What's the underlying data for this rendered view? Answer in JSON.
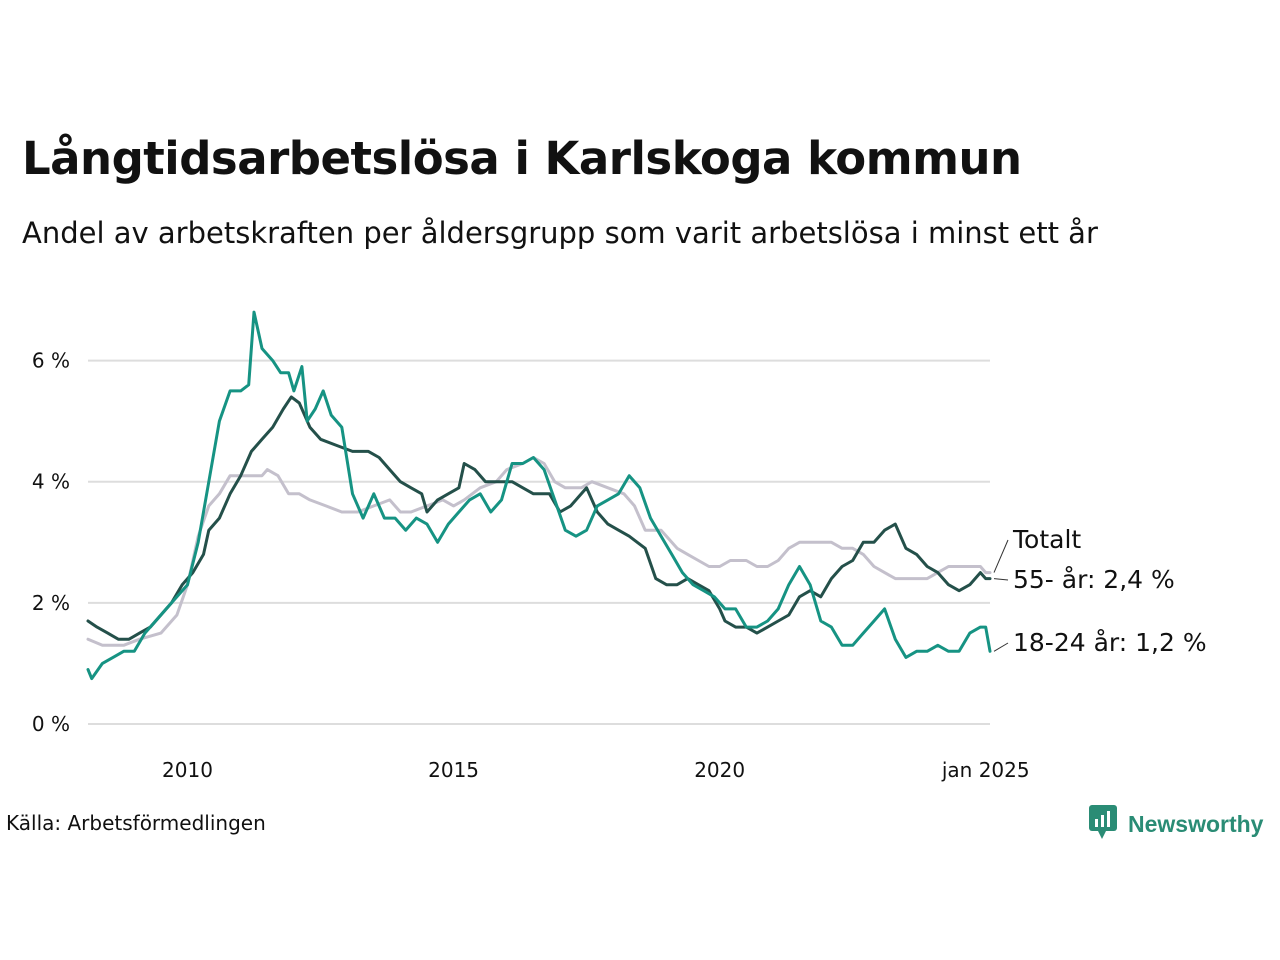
{
  "title": "Långtidsarbetslösa i Karlskoga kommun",
  "subtitle": "Andel av arbetskraften per åldersgrupp som varit arbetslösa i minst ett år",
  "source": "Källa: Arbetsförmedlingen",
  "brand": {
    "name": "Newsworthy",
    "icon": "newsworthy-logo-icon"
  },
  "colors": {
    "totalt": "#c4c0cc",
    "age55": "#24504a",
    "age18_24": "#169383",
    "grid": "#dddddd"
  },
  "chart_data": {
    "type": "line",
    "title": "Långtidsarbetslösa i Karlskoga kommun",
    "subtitle": "Andel av arbetskraften per åldersgrupp som varit arbetslösa i minst ett år",
    "xlabel": "",
    "ylabel": "",
    "ylim": [
      0,
      7
    ],
    "xlim": [
      2008.13,
      2025.08
    ],
    "yticks": [
      0,
      2,
      4,
      6
    ],
    "ytick_labels": [
      "0 %",
      "2 %",
      "4 %",
      "6 %"
    ],
    "xticks": [
      2010,
      2015,
      2020,
      2025.0
    ],
    "xtick_labels": [
      "2010",
      "2015",
      "2020",
      "jan 2025"
    ],
    "grid": "horizontal",
    "legend": "direct labels at right end of lines",
    "series": [
      {
        "name": "Totalt",
        "label": "Totalt",
        "key": "totalt",
        "points": [
          [
            2008.13,
            1.4
          ],
          [
            2008.4,
            1.3
          ],
          [
            2008.8,
            1.3
          ],
          [
            2009.1,
            1.4
          ],
          [
            2009.5,
            1.5
          ],
          [
            2009.8,
            1.8
          ],
          [
            2010.0,
            2.3
          ],
          [
            2010.2,
            3.1
          ],
          [
            2010.4,
            3.6
          ],
          [
            2010.6,
            3.8
          ],
          [
            2010.8,
            4.1
          ],
          [
            2011.0,
            4.1
          ],
          [
            2011.2,
            4.1
          ],
          [
            2011.4,
            4.1
          ],
          [
            2011.5,
            4.2
          ],
          [
            2011.7,
            4.1
          ],
          [
            2011.9,
            3.8
          ],
          [
            2012.1,
            3.8
          ],
          [
            2012.3,
            3.7
          ],
          [
            2012.6,
            3.6
          ],
          [
            2012.9,
            3.5
          ],
          [
            2013.2,
            3.5
          ],
          [
            2013.5,
            3.6
          ],
          [
            2013.8,
            3.7
          ],
          [
            2014.0,
            3.5
          ],
          [
            2014.2,
            3.5
          ],
          [
            2014.5,
            3.6
          ],
          [
            2014.8,
            3.7
          ],
          [
            2015.0,
            3.6
          ],
          [
            2015.2,
            3.7
          ],
          [
            2015.5,
            3.9
          ],
          [
            2015.8,
            4.0
          ],
          [
            2016.0,
            4.2
          ],
          [
            2016.3,
            4.3
          ],
          [
            2016.5,
            4.4
          ],
          [
            2016.7,
            4.3
          ],
          [
            2016.9,
            4.0
          ],
          [
            2017.1,
            3.9
          ],
          [
            2017.4,
            3.9
          ],
          [
            2017.6,
            4.0
          ],
          [
            2017.9,
            3.9
          ],
          [
            2018.2,
            3.8
          ],
          [
            2018.4,
            3.6
          ],
          [
            2018.6,
            3.2
          ],
          [
            2018.9,
            3.2
          ],
          [
            2019.2,
            2.9
          ],
          [
            2019.4,
            2.8
          ],
          [
            2019.6,
            2.7
          ],
          [
            2019.8,
            2.6
          ],
          [
            2020.0,
            2.6
          ],
          [
            2020.2,
            2.7
          ],
          [
            2020.5,
            2.7
          ],
          [
            2020.7,
            2.6
          ],
          [
            2020.9,
            2.6
          ],
          [
            2021.1,
            2.7
          ],
          [
            2021.3,
            2.9
          ],
          [
            2021.5,
            3.0
          ],
          [
            2021.7,
            3.0
          ],
          [
            2021.9,
            3.0
          ],
          [
            2022.1,
            3.0
          ],
          [
            2022.3,
            2.9
          ],
          [
            2022.5,
            2.9
          ],
          [
            2022.7,
            2.8
          ],
          [
            2022.9,
            2.6
          ],
          [
            2023.1,
            2.5
          ],
          [
            2023.3,
            2.4
          ],
          [
            2023.5,
            2.4
          ],
          [
            2023.7,
            2.4
          ],
          [
            2023.9,
            2.4
          ],
          [
            2024.1,
            2.5
          ],
          [
            2024.3,
            2.6
          ],
          [
            2024.5,
            2.6
          ],
          [
            2024.7,
            2.6
          ],
          [
            2024.9,
            2.6
          ],
          [
            2025.0,
            2.5
          ],
          [
            2025.08,
            2.5
          ]
        ]
      },
      {
        "name": "55- år",
        "label": "55- år: 2,4 %",
        "key": "age55",
        "points": [
          [
            2008.13,
            1.7
          ],
          [
            2008.3,
            1.6
          ],
          [
            2008.5,
            1.5
          ],
          [
            2008.7,
            1.4
          ],
          [
            2008.9,
            1.4
          ],
          [
            2009.1,
            1.5
          ],
          [
            2009.3,
            1.6
          ],
          [
            2009.5,
            1.8
          ],
          [
            2009.7,
            2.0
          ],
          [
            2009.9,
            2.3
          ],
          [
            2010.1,
            2.5
          ],
          [
            2010.3,
            2.8
          ],
          [
            2010.4,
            3.2
          ],
          [
            2010.6,
            3.4
          ],
          [
            2010.8,
            3.8
          ],
          [
            2011.0,
            4.1
          ],
          [
            2011.2,
            4.5
          ],
          [
            2011.4,
            4.7
          ],
          [
            2011.6,
            4.9
          ],
          [
            2011.8,
            5.2
          ],
          [
            2011.95,
            5.4
          ],
          [
            2012.1,
            5.3
          ],
          [
            2012.3,
            4.9
          ],
          [
            2012.5,
            4.7
          ],
          [
            2012.8,
            4.6
          ],
          [
            2013.1,
            4.5
          ],
          [
            2013.4,
            4.5
          ],
          [
            2013.6,
            4.4
          ],
          [
            2013.8,
            4.2
          ],
          [
            2014.0,
            4.0
          ],
          [
            2014.2,
            3.9
          ],
          [
            2014.4,
            3.8
          ],
          [
            2014.5,
            3.5
          ],
          [
            2014.7,
            3.7
          ],
          [
            2014.9,
            3.8
          ],
          [
            2015.1,
            3.9
          ],
          [
            2015.2,
            4.3
          ],
          [
            2015.4,
            4.2
          ],
          [
            2015.6,
            4.0
          ],
          [
            2015.9,
            4.0
          ],
          [
            2016.1,
            4.0
          ],
          [
            2016.3,
            3.9
          ],
          [
            2016.5,
            3.8
          ],
          [
            2016.8,
            3.8
          ],
          [
            2017.0,
            3.5
          ],
          [
            2017.2,
            3.6
          ],
          [
            2017.5,
            3.9
          ],
          [
            2017.7,
            3.5
          ],
          [
            2017.9,
            3.3
          ],
          [
            2018.1,
            3.2
          ],
          [
            2018.3,
            3.1
          ],
          [
            2018.6,
            2.9
          ],
          [
            2018.8,
            2.4
          ],
          [
            2019.0,
            2.3
          ],
          [
            2019.2,
            2.3
          ],
          [
            2019.4,
            2.4
          ],
          [
            2019.6,
            2.3
          ],
          [
            2019.8,
            2.2
          ],
          [
            2020.0,
            1.9
          ],
          [
            2020.1,
            1.7
          ],
          [
            2020.3,
            1.6
          ],
          [
            2020.5,
            1.6
          ],
          [
            2020.7,
            1.5
          ],
          [
            2020.9,
            1.6
          ],
          [
            2021.1,
            1.7
          ],
          [
            2021.3,
            1.8
          ],
          [
            2021.5,
            2.1
          ],
          [
            2021.7,
            2.2
          ],
          [
            2021.9,
            2.1
          ],
          [
            2022.1,
            2.4
          ],
          [
            2022.3,
            2.6
          ],
          [
            2022.5,
            2.7
          ],
          [
            2022.7,
            3.0
          ],
          [
            2022.9,
            3.0
          ],
          [
            2023.1,
            3.2
          ],
          [
            2023.3,
            3.3
          ],
          [
            2023.5,
            2.9
          ],
          [
            2023.7,
            2.8
          ],
          [
            2023.9,
            2.6
          ],
          [
            2024.1,
            2.5
          ],
          [
            2024.3,
            2.3
          ],
          [
            2024.5,
            2.2
          ],
          [
            2024.7,
            2.3
          ],
          [
            2024.9,
            2.5
          ],
          [
            2025.0,
            2.4
          ],
          [
            2025.08,
            2.4
          ]
        ]
      },
      {
        "name": "18-24 år",
        "label": "18-24 år: 1,2 %",
        "key": "age18_24",
        "points": [
          [
            2008.13,
            0.9
          ],
          [
            2008.2,
            0.75
          ],
          [
            2008.4,
            1.0
          ],
          [
            2008.6,
            1.1
          ],
          [
            2008.8,
            1.2
          ],
          [
            2009.0,
            1.2
          ],
          [
            2009.2,
            1.5
          ],
          [
            2009.4,
            1.7
          ],
          [
            2009.6,
            1.9
          ],
          [
            2009.8,
            2.1
          ],
          [
            2010.0,
            2.3
          ],
          [
            2010.2,
            3.0
          ],
          [
            2010.4,
            4.0
          ],
          [
            2010.6,
            5.0
          ],
          [
            2010.8,
            5.5
          ],
          [
            2011.0,
            5.5
          ],
          [
            2011.15,
            5.6
          ],
          [
            2011.25,
            6.8
          ],
          [
            2011.4,
            6.2
          ],
          [
            2011.6,
            6.0
          ],
          [
            2011.75,
            5.8
          ],
          [
            2011.9,
            5.8
          ],
          [
            2012.0,
            5.5
          ],
          [
            2012.15,
            5.9
          ],
          [
            2012.25,
            5.0
          ],
          [
            2012.4,
            5.2
          ],
          [
            2012.55,
            5.5
          ],
          [
            2012.7,
            5.1
          ],
          [
            2012.9,
            4.9
          ],
          [
            2013.1,
            3.8
          ],
          [
            2013.3,
            3.4
          ],
          [
            2013.5,
            3.8
          ],
          [
            2013.7,
            3.4
          ],
          [
            2013.9,
            3.4
          ],
          [
            2014.1,
            3.2
          ],
          [
            2014.3,
            3.4
          ],
          [
            2014.5,
            3.3
          ],
          [
            2014.7,
            3.0
          ],
          [
            2014.9,
            3.3
          ],
          [
            2015.1,
            3.5
          ],
          [
            2015.3,
            3.7
          ],
          [
            2015.5,
            3.8
          ],
          [
            2015.7,
            3.5
          ],
          [
            2015.9,
            3.7
          ],
          [
            2016.1,
            4.3
          ],
          [
            2016.3,
            4.3
          ],
          [
            2016.5,
            4.4
          ],
          [
            2016.7,
            4.2
          ],
          [
            2016.9,
            3.7
          ],
          [
            2017.1,
            3.2
          ],
          [
            2017.3,
            3.1
          ],
          [
            2017.5,
            3.2
          ],
          [
            2017.7,
            3.6
          ],
          [
            2017.9,
            3.7
          ],
          [
            2018.1,
            3.8
          ],
          [
            2018.3,
            4.1
          ],
          [
            2018.5,
            3.9
          ],
          [
            2018.7,
            3.4
          ],
          [
            2018.9,
            3.1
          ],
          [
            2019.1,
            2.8
          ],
          [
            2019.3,
            2.5
          ],
          [
            2019.5,
            2.3
          ],
          [
            2019.7,
            2.2
          ],
          [
            2019.9,
            2.1
          ],
          [
            2020.1,
            1.9
          ],
          [
            2020.3,
            1.9
          ],
          [
            2020.5,
            1.6
          ],
          [
            2020.7,
            1.6
          ],
          [
            2020.9,
            1.7
          ],
          [
            2021.1,
            1.9
          ],
          [
            2021.3,
            2.3
          ],
          [
            2021.5,
            2.6
          ],
          [
            2021.7,
            2.3
          ],
          [
            2021.9,
            1.7
          ],
          [
            2022.1,
            1.6
          ],
          [
            2022.3,
            1.3
          ],
          [
            2022.5,
            1.3
          ],
          [
            2022.7,
            1.5
          ],
          [
            2022.9,
            1.7
          ],
          [
            2023.1,
            1.9
          ],
          [
            2023.3,
            1.4
          ],
          [
            2023.5,
            1.1
          ],
          [
            2023.7,
            1.2
          ],
          [
            2023.9,
            1.2
          ],
          [
            2024.1,
            1.3
          ],
          [
            2024.3,
            1.2
          ],
          [
            2024.5,
            1.2
          ],
          [
            2024.7,
            1.5
          ],
          [
            2024.9,
            1.6
          ],
          [
            2025.0,
            1.6
          ],
          [
            2025.08,
            1.2
          ]
        ]
      }
    ]
  }
}
